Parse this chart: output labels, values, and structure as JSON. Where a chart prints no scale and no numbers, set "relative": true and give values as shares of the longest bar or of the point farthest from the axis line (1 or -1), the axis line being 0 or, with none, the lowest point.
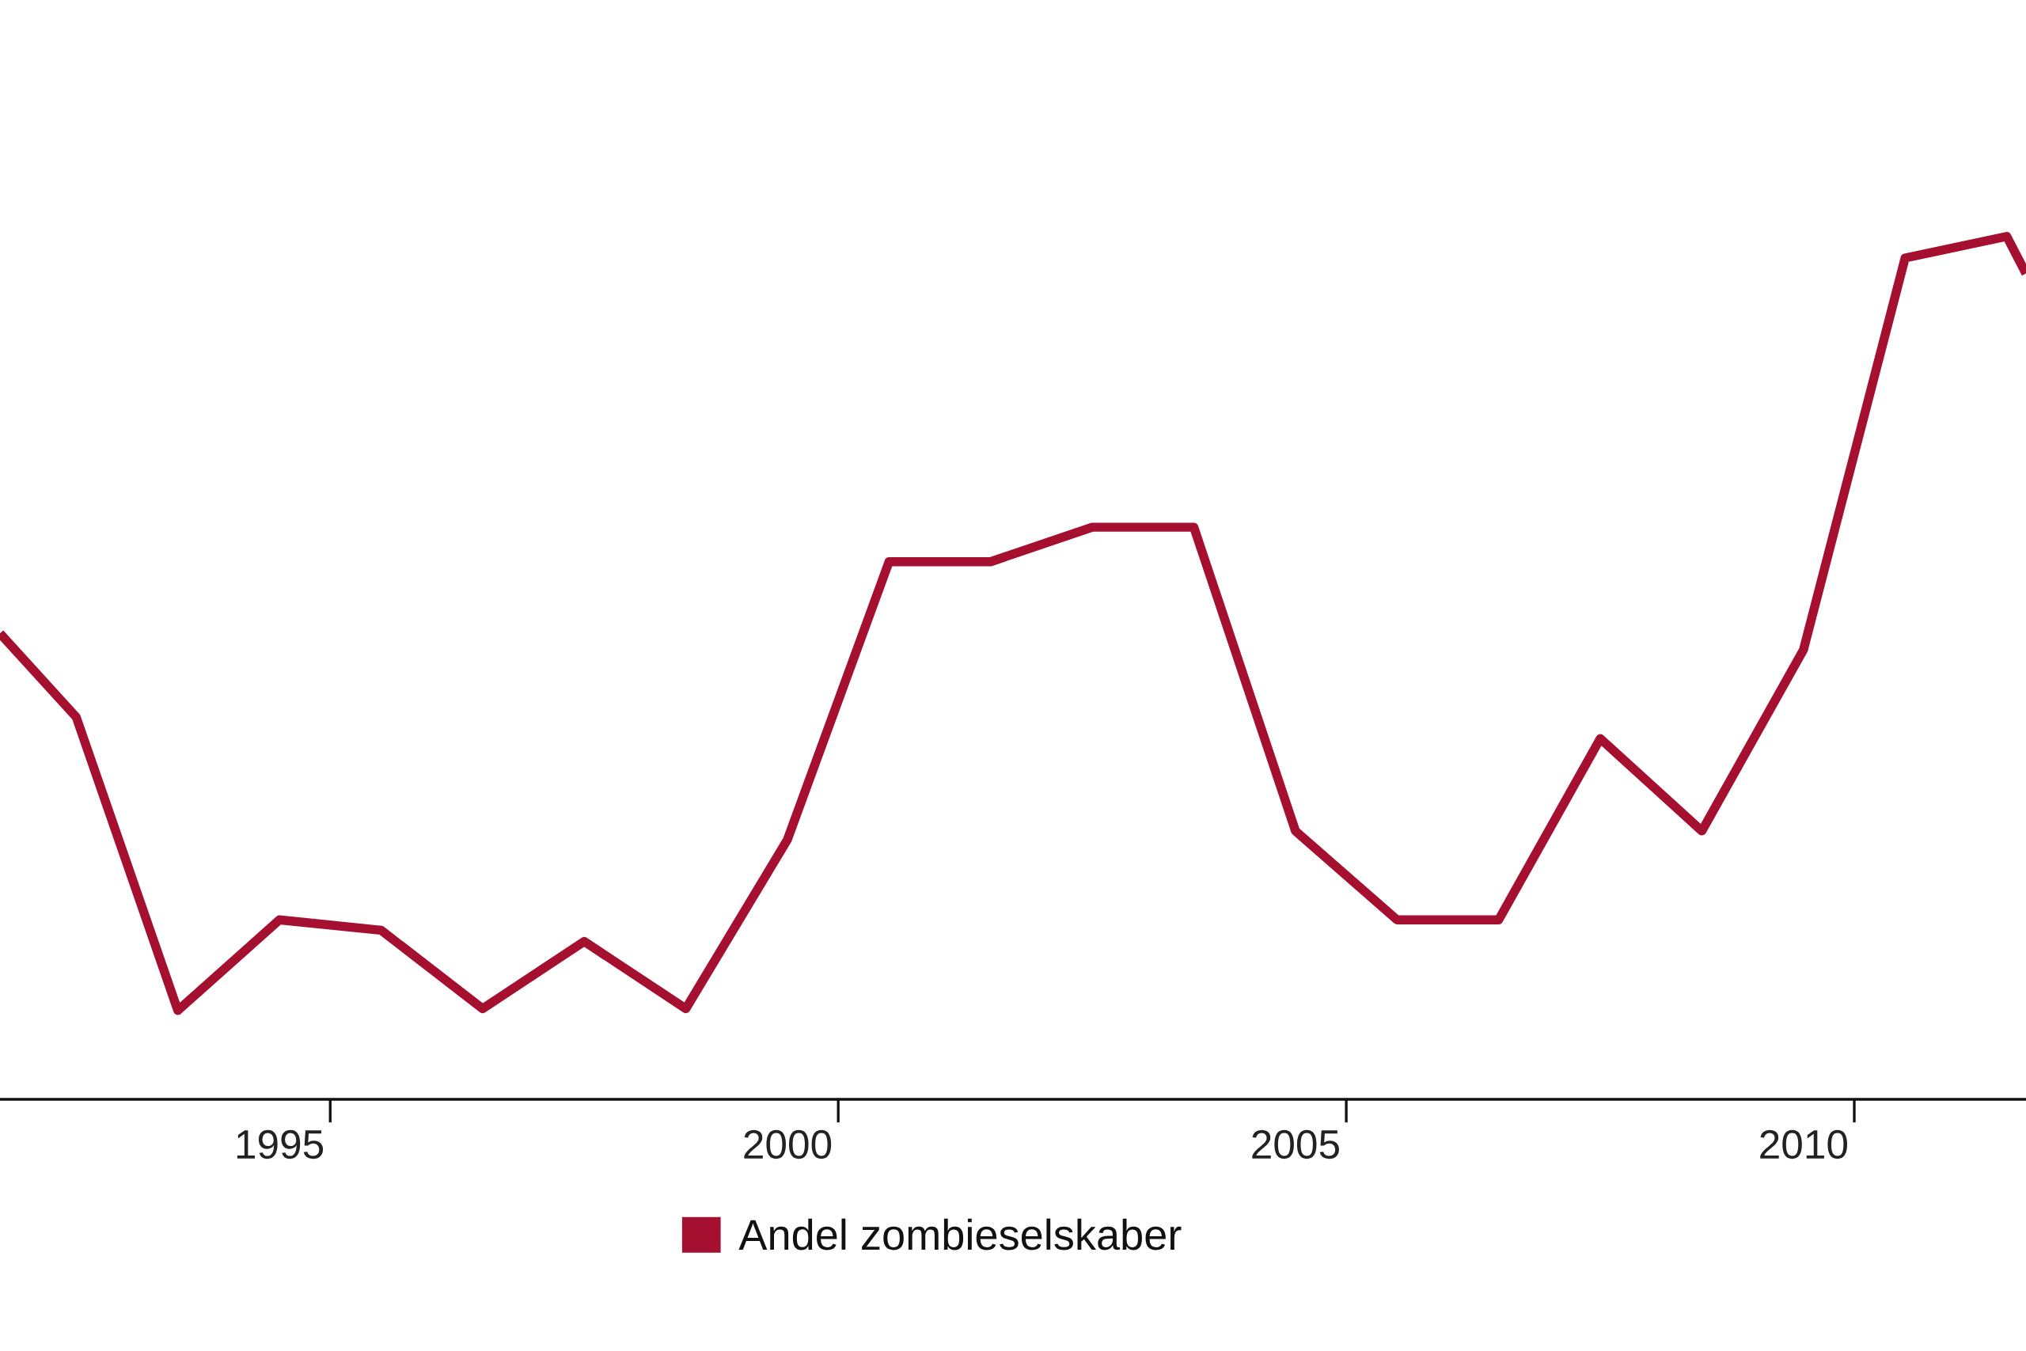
{
  "chart_data": {
    "type": "line",
    "relative": true,
    "x": [
      1992.25,
      1993,
      1994,
      1995,
      1996,
      1997,
      1998,
      1999,
      2000,
      2001,
      2002,
      2003,
      2004,
      2005,
      2006,
      2007,
      2008,
      2009,
      2010,
      2011,
      2012,
      2012.19
    ],
    "xlim": [
      1992.25,
      2012.19
    ],
    "xticks": [
      1995,
      2000,
      2005,
      2010
    ],
    "series": [
      {
        "name": "Andel zombieselskaber",
        "color": "#a50f30",
        "values": [
          0.54,
          0.443,
          0.103,
          0.208,
          0.196,
          0.105,
          0.183,
          0.105,
          0.301,
          0.623,
          0.623,
          0.663,
          0.663,
          0.311,
          0.208,
          0.208,
          0.418,
          0.311,
          0.521,
          0.975,
          1.0,
          0.957
        ]
      }
    ],
    "legend": "bottom"
  }
}
